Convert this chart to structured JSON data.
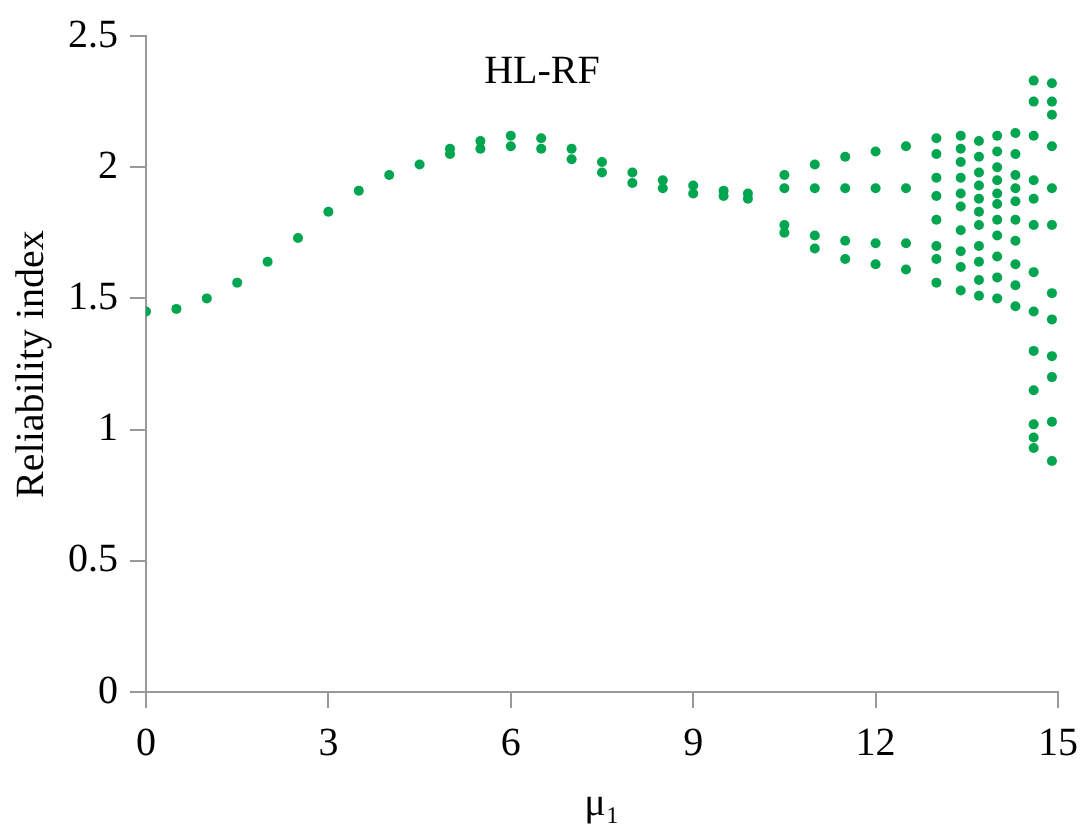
{
  "chart_data": {
    "type": "scatter",
    "title": "HL-RF",
    "xlabel": "μ₁",
    "ylabel": "Reliability index",
    "xlim": [
      0,
      15
    ],
    "xticks": [
      0,
      3,
      6,
      9,
      12,
      15
    ],
    "ylim": [
      0,
      2.5
    ],
    "yticks": [
      0,
      0.5,
      1,
      1.5,
      2,
      2.5
    ],
    "grid": false,
    "legend": false,
    "marker": "circle",
    "series": [
      {
        "color": "#00a550",
        "x": [
          0,
          0.5,
          1,
          1.5,
          2,
          2.5,
          3,
          3.5,
          4,
          4.5,
          5,
          5.5,
          6,
          6.5,
          7,
          7.5,
          8,
          8.5,
          9,
          9.5,
          9.9,
          5,
          5.5,
          6,
          6.5,
          7,
          7.5,
          8,
          8.5,
          9,
          9.5,
          9.9,
          10.5,
          11,
          11.5,
          12,
          12.5,
          10.5,
          11,
          11.5,
          12,
          12.5,
          10.5,
          11,
          11.5,
          12,
          12.5,
          10.5,
          11,
          11.5,
          12,
          12.5,
          13,
          13,
          13,
          13,
          13,
          13,
          13,
          13,
          13.4,
          13.4,
          13.4,
          13.4,
          13.4,
          13.4,
          13.4,
          13.4,
          13.4,
          13.4,
          13.7,
          13.7,
          13.7,
          13.7,
          13.7,
          13.7,
          13.7,
          13.7,
          13.7,
          13.7,
          13.7,
          14,
          14,
          14,
          14,
          14,
          14,
          14,
          14,
          14,
          14,
          14,
          14.3,
          14.3,
          14.3,
          14.3,
          14.3,
          14.3,
          14.3,
          14.3,
          14.3,
          14.3,
          14.6,
          14.6,
          14.6,
          14.6,
          14.6,
          14.6,
          14.6,
          14.6,
          14.6,
          14.6,
          14.6,
          14.6,
          14.6,
          14.9,
          14.9,
          14.9,
          14.9,
          14.9,
          14.9,
          14.9,
          14.9,
          14.9,
          14.9,
          14.9,
          14.9
        ],
        "values": [
          1.45,
          1.46,
          1.5,
          1.56,
          1.64,
          1.73,
          1.83,
          1.91,
          1.97,
          2.01,
          2.07,
          2.1,
          2.12,
          2.11,
          2.07,
          2.02,
          1.98,
          1.95,
          1.93,
          1.91,
          1.9,
          2.05,
          2.07,
          2.08,
          2.07,
          2.03,
          1.98,
          1.94,
          1.92,
          1.9,
          1.89,
          1.88,
          1.97,
          2.01,
          2.04,
          2.06,
          2.08,
          1.92,
          1.92,
          1.92,
          1.92,
          1.92,
          1.78,
          1.74,
          1.72,
          1.71,
          1.71,
          1.75,
          1.69,
          1.65,
          1.63,
          1.61,
          2.11,
          2.05,
          1.96,
          1.89,
          1.8,
          1.7,
          1.65,
          1.56,
          2.12,
          2.07,
          2.02,
          1.96,
          1.9,
          1.85,
          1.76,
          1.68,
          1.62,
          1.53,
          2.1,
          2.04,
          1.98,
          1.93,
          1.88,
          1.83,
          1.78,
          1.7,
          1.64,
          1.57,
          1.51,
          2.12,
          2.06,
          2,
          1.95,
          1.9,
          1.86,
          1.8,
          1.74,
          1.66,
          1.58,
          1.5,
          2.13,
          2.05,
          1.97,
          1.92,
          1.87,
          1.8,
          1.72,
          1.63,
          1.55,
          1.47,
          2.33,
          2.25,
          2.12,
          1.95,
          1.88,
          1.78,
          1.6,
          1.45,
          1.3,
          1.15,
          1.02,
          0.97,
          0.93,
          2.32,
          2.25,
          2.2,
          2.08,
          1.92,
          1.78,
          1.52,
          1.42,
          1.28,
          1.2,
          1.03,
          0.88
        ]
      }
    ]
  }
}
